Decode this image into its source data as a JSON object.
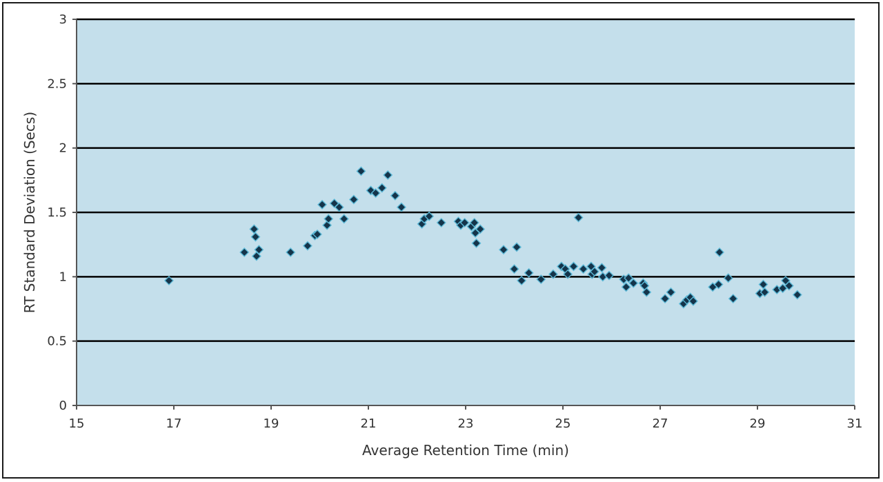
{
  "chart_data": {
    "type": "scatter",
    "title": "",
    "xlabel": "Average Retention Time (min)",
    "ylabel": "RT Standard Deviation (Secs)",
    "xlim": [
      15,
      31
    ],
    "ylim": [
      0,
      3
    ],
    "x_ticks": [
      15,
      17,
      19,
      21,
      23,
      25,
      27,
      29,
      31
    ],
    "y_ticks": [
      0,
      0.5,
      1,
      1.5,
      2,
      2.5,
      3
    ],
    "y_tick_labels": [
      "0",
      "0.5",
      "1",
      "1.5",
      "2",
      "2.5",
      "3"
    ],
    "grid": "horizontal",
    "legend": "none",
    "colors": {
      "plot_bg": "#c4dfeb",
      "marker": "#14344a",
      "marker_edge": "#5cb8d6",
      "grid": "#000000"
    },
    "series": [
      {
        "points": [
          [
            16.9,
            0.97
          ],
          [
            18.45,
            1.19
          ],
          [
            18.65,
            1.37
          ],
          [
            18.68,
            1.31
          ],
          [
            18.7,
            1.16
          ],
          [
            18.75,
            1.21
          ],
          [
            19.4,
            1.19
          ],
          [
            19.75,
            1.24
          ],
          [
            19.9,
            1.32
          ],
          [
            19.95,
            1.33
          ],
          [
            20.05,
            1.56
          ],
          [
            20.15,
            1.4
          ],
          [
            20.18,
            1.45
          ],
          [
            20.3,
            1.57
          ],
          [
            20.4,
            1.54
          ],
          [
            20.5,
            1.45
          ],
          [
            20.7,
            1.6
          ],
          [
            20.85,
            1.82
          ],
          [
            21.05,
            1.67
          ],
          [
            21.15,
            1.65
          ],
          [
            21.28,
            1.69
          ],
          [
            21.4,
            1.79
          ],
          [
            21.55,
            1.63
          ],
          [
            21.68,
            1.54
          ],
          [
            22.1,
            1.41
          ],
          [
            22.15,
            1.45
          ],
          [
            22.25,
            1.47
          ],
          [
            22.5,
            1.42
          ],
          [
            22.85,
            1.43
          ],
          [
            22.9,
            1.4
          ],
          [
            22.98,
            1.42
          ],
          [
            23.12,
            1.39
          ],
          [
            23.18,
            1.42
          ],
          [
            23.2,
            1.34
          ],
          [
            23.22,
            1.26
          ],
          [
            23.3,
            1.37
          ],
          [
            23.78,
            1.21
          ],
          [
            24.0,
            1.06
          ],
          [
            24.05,
            1.23
          ],
          [
            24.15,
            0.97
          ],
          [
            24.3,
            1.03
          ],
          [
            24.55,
            0.98
          ],
          [
            24.8,
            1.02
          ],
          [
            24.97,
            1.08
          ],
          [
            25.05,
            1.06
          ],
          [
            25.1,
            1.02
          ],
          [
            25.22,
            1.08
          ],
          [
            25.32,
            1.46
          ],
          [
            25.42,
            1.06
          ],
          [
            25.58,
            1.08
          ],
          [
            25.6,
            1.02
          ],
          [
            25.65,
            1.04
          ],
          [
            25.8,
            1.07
          ],
          [
            25.82,
            1.0
          ],
          [
            25.95,
            1.01
          ],
          [
            26.25,
            0.98
          ],
          [
            26.3,
            0.92
          ],
          [
            26.35,
            0.99
          ],
          [
            26.45,
            0.95
          ],
          [
            26.65,
            0.95
          ],
          [
            26.68,
            0.93
          ],
          [
            26.72,
            0.88
          ],
          [
            27.1,
            0.83
          ],
          [
            27.22,
            0.88
          ],
          [
            27.48,
            0.79
          ],
          [
            27.55,
            0.82
          ],
          [
            27.62,
            0.84
          ],
          [
            27.68,
            0.81
          ],
          [
            28.08,
            0.92
          ],
          [
            28.2,
            0.94
          ],
          [
            28.22,
            1.19
          ],
          [
            28.4,
            0.99
          ],
          [
            28.5,
            0.83
          ],
          [
            29.05,
            0.87
          ],
          [
            29.12,
            0.94
          ],
          [
            29.15,
            0.88
          ],
          [
            29.4,
            0.9
          ],
          [
            29.52,
            0.91
          ],
          [
            29.58,
            0.97
          ],
          [
            29.65,
            0.93
          ],
          [
            29.82,
            0.86
          ]
        ]
      }
    ]
  }
}
